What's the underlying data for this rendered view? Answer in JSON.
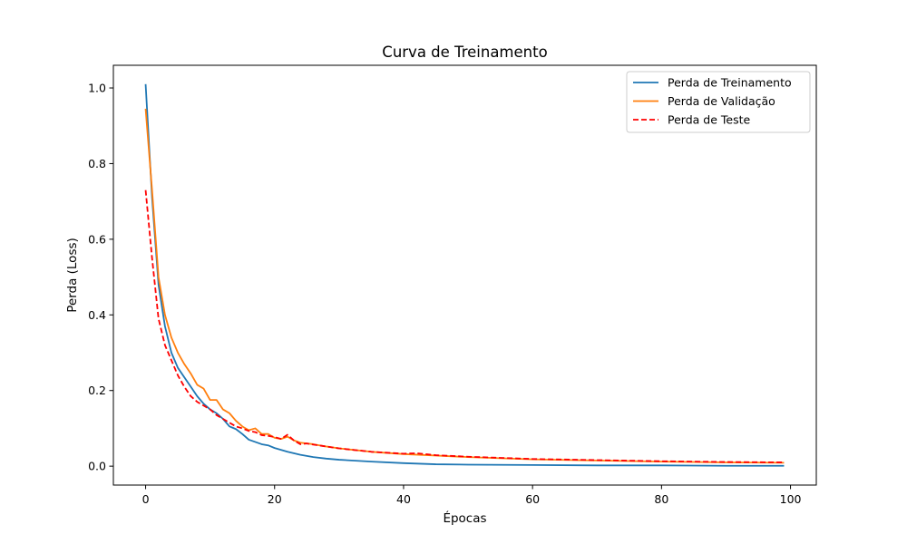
{
  "chart_data": {
    "type": "line",
    "title": "Curva de Treinamento",
    "xlabel": "Épocas",
    "ylabel": "Perda (Loss)",
    "xlim": [
      -5,
      104
    ],
    "ylim": [
      -0.05,
      1.06
    ],
    "xticks": [
      0,
      20,
      40,
      60,
      80,
      100
    ],
    "yticks": [
      0.0,
      0.2,
      0.4,
      0.6,
      0.8,
      1.0
    ],
    "xtick_labels": [
      "0",
      "20",
      "40",
      "60",
      "80",
      "100"
    ],
    "ytick_labels": [
      "0.0",
      "0.2",
      "0.4",
      "0.6",
      "0.8",
      "1.0"
    ],
    "grid": false,
    "legend_position": "top-right",
    "series": [
      {
        "name": "Perda de Treinamento",
        "color": "#1f77b4",
        "dash": "solid",
        "x": [
          0,
          1,
          2,
          3,
          4,
          5,
          6,
          7,
          8,
          9,
          10,
          11,
          12,
          13,
          14,
          15,
          16,
          17,
          18,
          19,
          20,
          22,
          24,
          26,
          28,
          30,
          35,
          40,
          45,
          50,
          60,
          70,
          80,
          90,
          99
        ],
        "y": [
          1.01,
          0.71,
          0.48,
          0.37,
          0.3,
          0.26,
          0.235,
          0.21,
          0.185,
          0.165,
          0.15,
          0.14,
          0.125,
          0.105,
          0.098,
          0.085,
          0.07,
          0.064,
          0.058,
          0.055,
          0.048,
          0.038,
          0.03,
          0.024,
          0.02,
          0.017,
          0.012,
          0.008,
          0.005,
          0.004,
          0.003,
          0.002,
          0.002,
          0.001,
          0.001
        ]
      },
      {
        "name": "Perda de Validação",
        "color": "#ff7f0e",
        "dash": "solid",
        "x": [
          0,
          1,
          2,
          3,
          4,
          5,
          6,
          7,
          8,
          9,
          10,
          11,
          12,
          13,
          14,
          15,
          16,
          17,
          18,
          19,
          20,
          21,
          22,
          23,
          24,
          26,
          28,
          30,
          35,
          40,
          45,
          50,
          55,
          60,
          70,
          80,
          90,
          99
        ],
        "y": [
          0.945,
          0.73,
          0.5,
          0.4,
          0.34,
          0.3,
          0.27,
          0.245,
          0.215,
          0.205,
          0.175,
          0.175,
          0.15,
          0.14,
          0.12,
          0.105,
          0.095,
          0.1,
          0.085,
          0.085,
          0.075,
          0.072,
          0.078,
          0.068,
          0.062,
          0.058,
          0.052,
          0.047,
          0.038,
          0.032,
          0.028,
          0.024,
          0.021,
          0.018,
          0.015,
          0.012,
          0.01,
          0.009
        ]
      },
      {
        "name": "Perda de Teste",
        "color": "#ff0000",
        "dash": "dashed",
        "x": [
          0,
          1,
          2,
          3,
          4,
          5,
          6,
          7,
          8,
          9,
          10,
          11,
          12,
          13,
          14,
          15,
          16,
          17,
          18,
          19,
          20,
          21,
          22,
          23,
          24,
          25,
          26,
          28,
          30,
          35,
          40,
          42,
          45,
          50,
          55,
          60,
          70,
          80,
          90,
          99
        ],
        "y": [
          0.73,
          0.55,
          0.39,
          0.32,
          0.28,
          0.24,
          0.21,
          0.185,
          0.17,
          0.16,
          0.15,
          0.135,
          0.125,
          0.115,
          0.105,
          0.1,
          0.093,
          0.09,
          0.082,
          0.08,
          0.077,
          0.072,
          0.083,
          0.068,
          0.058,
          0.06,
          0.057,
          0.052,
          0.047,
          0.038,
          0.033,
          0.034,
          0.029,
          0.025,
          0.022,
          0.019,
          0.016,
          0.013,
          0.011,
          0.01
        ]
      }
    ]
  }
}
